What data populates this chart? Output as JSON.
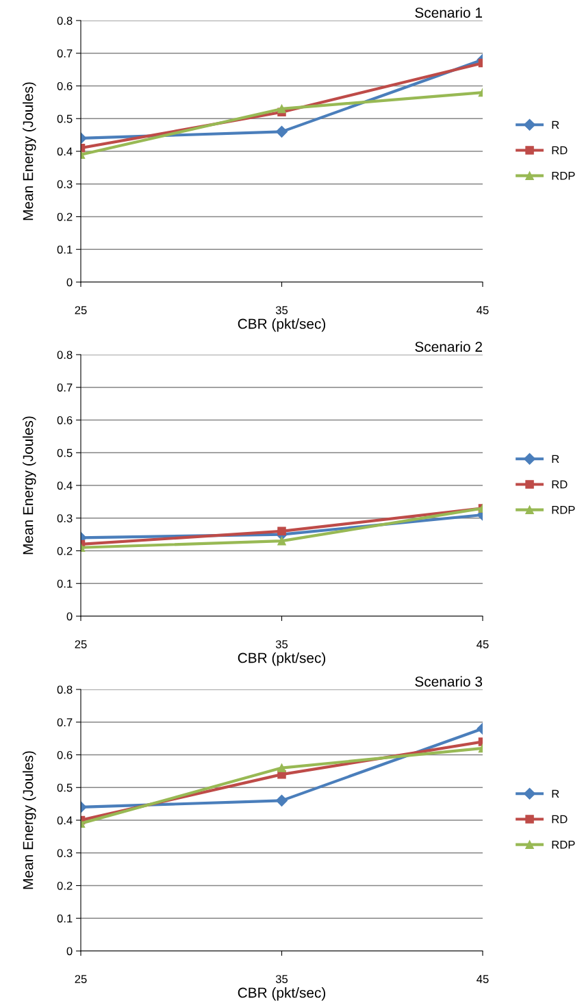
{
  "chart_data": [
    {
      "type": "line",
      "title": "Scenario 1",
      "xlabel": "CBR (pkt/sec)",
      "ylabel": "Mean Energy (Joules)",
      "categories": [
        "25",
        "35",
        "45"
      ],
      "ylim": [
        0,
        0.8
      ],
      "yticks": [
        0,
        0.1,
        0.2,
        0.3,
        0.4,
        0.5,
        0.6,
        0.7,
        0.8
      ],
      "grid": "y",
      "legend": "right",
      "line_style": "solid",
      "series": [
        {
          "name": "R",
          "color": "#4a7ebb",
          "marker": "diamond",
          "values": [
            0.44,
            0.46,
            0.68
          ]
        },
        {
          "name": "RD",
          "color": "#be4b48",
          "marker": "square",
          "values": [
            0.41,
            0.52,
            0.67
          ]
        },
        {
          "name": "RDP",
          "color": "#98b954",
          "marker": "triangle",
          "values": [
            0.39,
            0.53,
            0.58
          ]
        }
      ]
    },
    {
      "type": "line",
      "title": "Scenario 2",
      "xlabel": "CBR (pkt/sec)",
      "ylabel": "Mean Energy (Joules)",
      "categories": [
        "25",
        "35",
        "45"
      ],
      "ylim": [
        0,
        0.8
      ],
      "yticks": [
        0,
        0.1,
        0.2,
        0.3,
        0.4,
        0.5,
        0.6,
        0.7,
        0.8
      ],
      "grid": "y",
      "legend": "right",
      "line_style": "solid",
      "series": [
        {
          "name": "R",
          "color": "#4a7ebb",
          "marker": "diamond",
          "values": [
            0.24,
            0.25,
            0.31
          ]
        },
        {
          "name": "RD",
          "color": "#be4b48",
          "marker": "square",
          "values": [
            0.22,
            0.26,
            0.33
          ]
        },
        {
          "name": "RDP",
          "color": "#98b954",
          "marker": "triangle",
          "values": [
            0.21,
            0.23,
            0.33
          ]
        }
      ]
    },
    {
      "type": "line",
      "title": "Scenario 3",
      "xlabel": "CBR (pkt/sec)",
      "ylabel": "Mean Energy (Joules)",
      "categories": [
        "25",
        "35",
        "45"
      ],
      "ylim": [
        0,
        0.8
      ],
      "yticks": [
        0,
        0.1,
        0.2,
        0.3,
        0.4,
        0.5,
        0.6,
        0.7,
        0.8
      ],
      "grid": "y",
      "legend": "right",
      "line_style": "solid",
      "series": [
        {
          "name": "R",
          "color": "#4a7ebb",
          "marker": "diamond",
          "values": [
            0.44,
            0.46,
            0.68
          ]
        },
        {
          "name": "RD",
          "color": "#be4b48",
          "marker": "square",
          "values": [
            0.4,
            0.54,
            0.64
          ]
        },
        {
          "name": "RDP",
          "color": "#98b954",
          "marker": "triangle",
          "values": [
            0.39,
            0.56,
            0.62
          ]
        }
      ]
    }
  ]
}
